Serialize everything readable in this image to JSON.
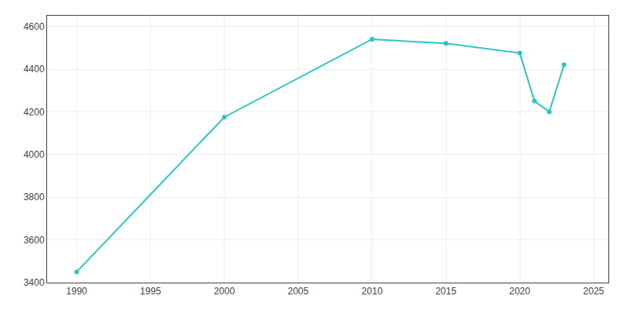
{
  "chart_data": {
    "type": "line",
    "x": [
      1990,
      2000,
      2010,
      2015,
      2020,
      2021,
      2022,
      2023
    ],
    "values": [
      3450,
      4175,
      4540,
      4520,
      4475,
      4250,
      4200,
      4420
    ],
    "color": "#2bc5c5",
    "marker": "circle",
    "xlim": [
      1988,
      2026
    ],
    "ylim": [
      3400,
      4650
    ],
    "xticks": [
      1990,
      1995,
      2000,
      2005,
      2010,
      2015,
      2020,
      2025
    ],
    "yticks": [
      3400,
      3600,
      3800,
      4000,
      4200,
      4400,
      4600
    ],
    "grid": true
  }
}
